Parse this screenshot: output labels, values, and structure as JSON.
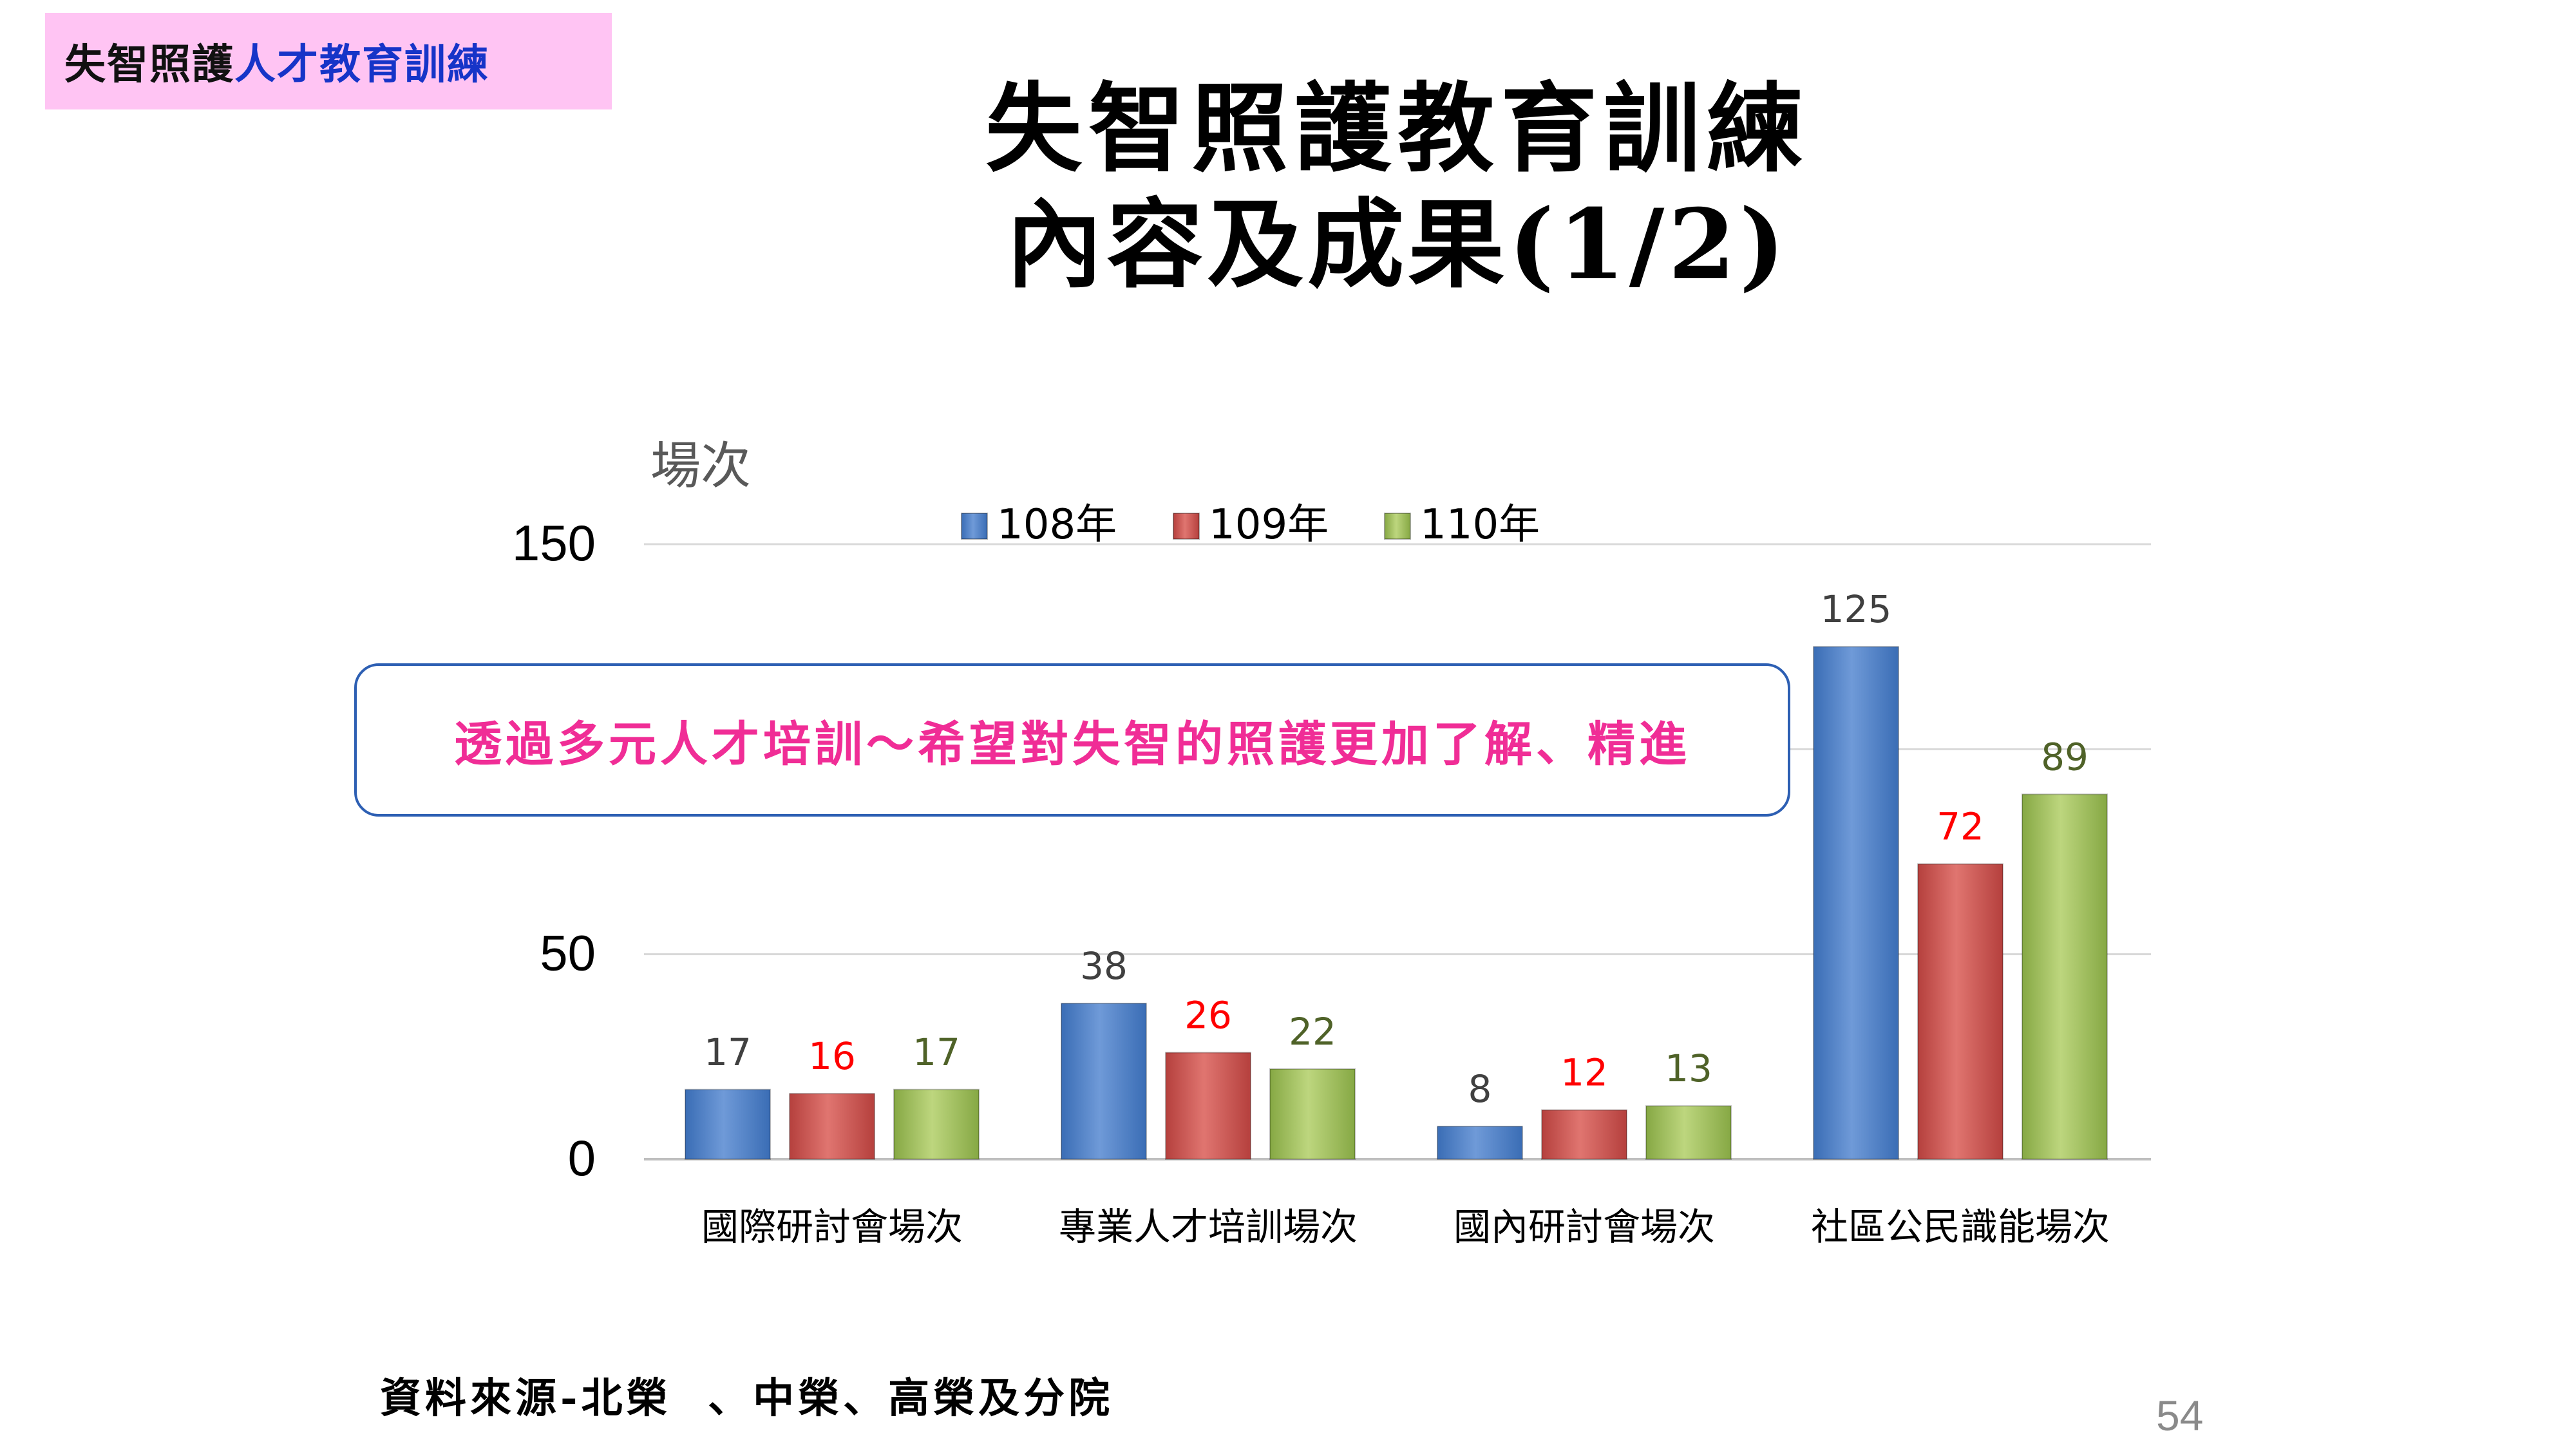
{
  "slide": {
    "tag_part1": "失智照護",
    "tag_part2": "人才教育訓練",
    "title_line1": "失智照護教育訓練",
    "title_line2": "內容及成果(1/2)",
    "callout": "透過多元人才培訓～希望對失智的照護更加了解、精進",
    "source": "資料來源-北榮  、中榮、高榮及分院",
    "page_number": "54"
  },
  "chart_data": {
    "type": "bar",
    "ylabel": "場次",
    "categories": [
      "國際研討會場次",
      "專業人才培訓場次",
      "國內研討會場次",
      "社區公民識能場次"
    ],
    "series": [
      {
        "name": "108年",
        "values": [
          17,
          38,
          8,
          125
        ],
        "color": "#4f81c7",
        "label_color": "#404040"
      },
      {
        "name": "109年",
        "values": [
          16,
          26,
          12,
          72
        ],
        "color": "#c9504d",
        "label_color": "#ff0000"
      },
      {
        "name": "110年",
        "values": [
          17,
          22,
          13,
          89
        ],
        "color": "#9bbb59",
        "label_color": "#4f6228"
      }
    ],
    "yticks": [
      0,
      50,
      150
    ],
    "gridlines": [
      0,
      50,
      100,
      150
    ],
    "ylim": [
      0,
      150
    ],
    "legend": "top-center",
    "grid": true
  }
}
